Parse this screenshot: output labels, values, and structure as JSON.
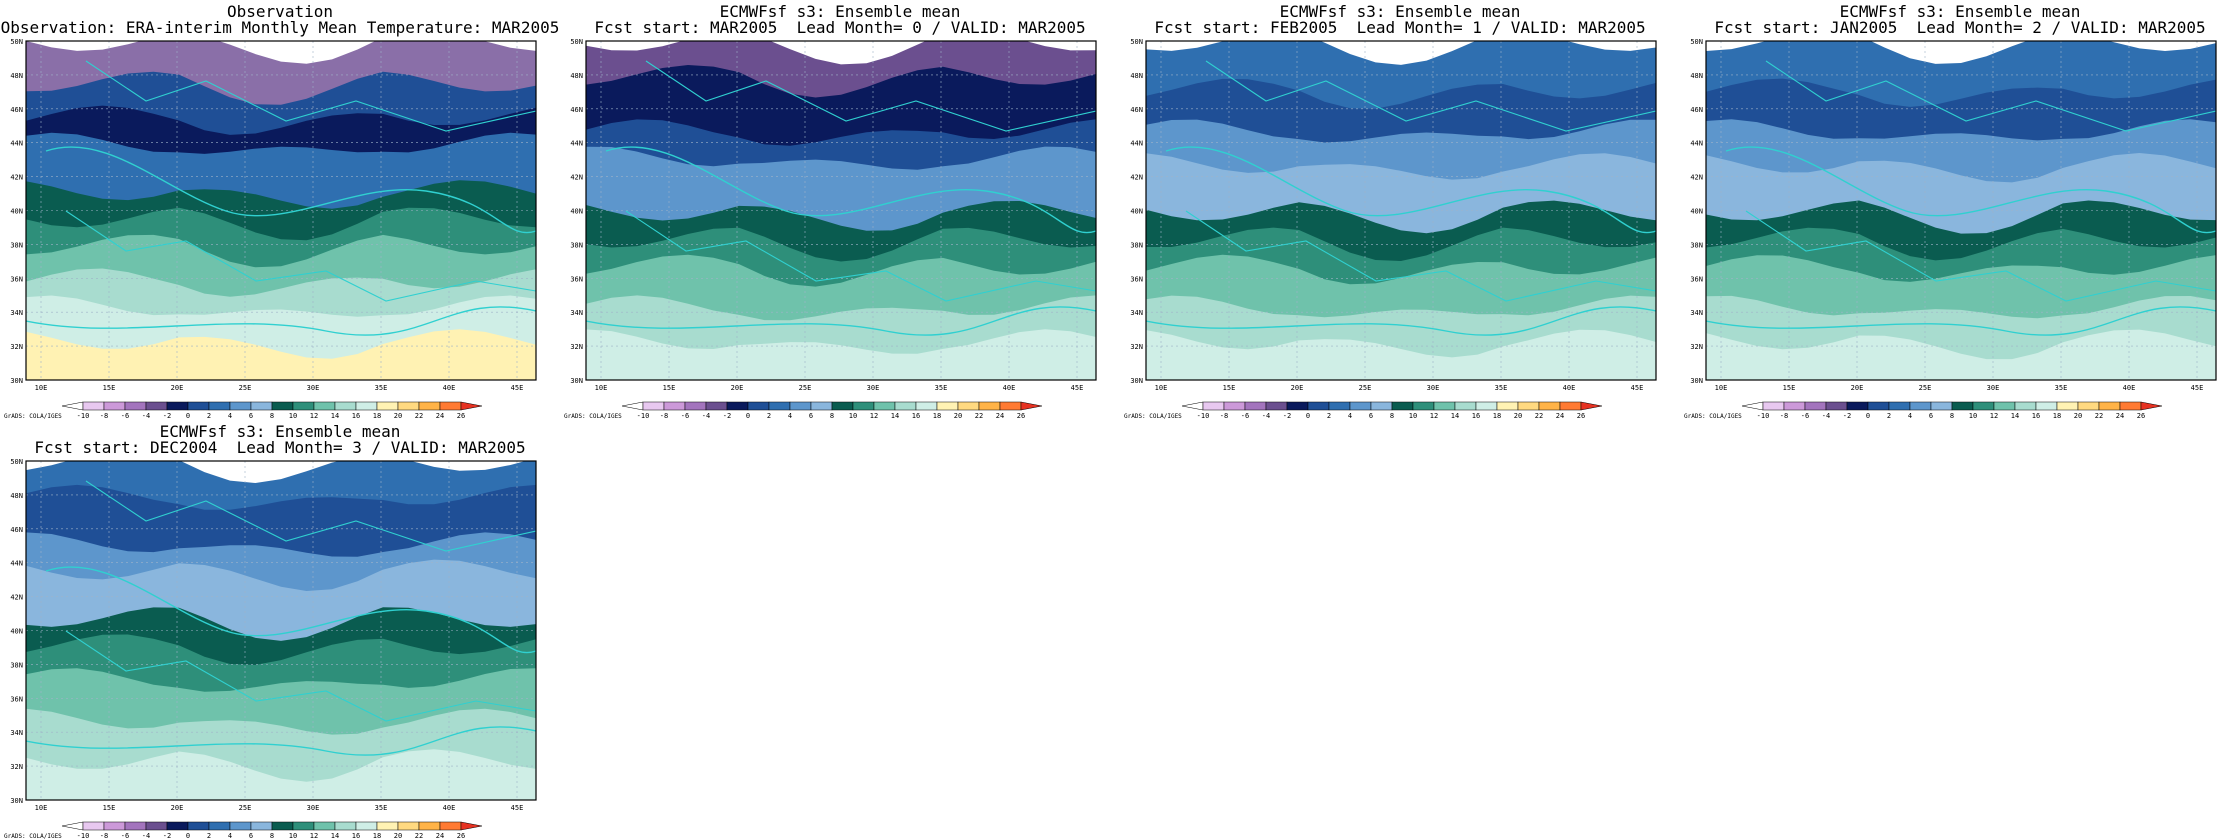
{
  "colorbar": {
    "credit": "GrADS: COLA/IGES",
    "levels": [
      "-10",
      "-8",
      "-6",
      "-4",
      "-2",
      "0",
      "2",
      "4",
      "6",
      "8",
      "10",
      "12",
      "14",
      "16",
      "18",
      "20",
      "22",
      "24",
      "26"
    ],
    "colors": [
      "#ffffff",
      "#e8c8f0",
      "#cc99d9",
      "#a374bd",
      "#6b4f8f",
      "#0a1a5c",
      "#1f4f96",
      "#2f6fb0",
      "#5d96cc",
      "#8ab6dd",
      "#0a5c50",
      "#2e8f7a",
      "#6fc2ab",
      "#a8dccf",
      "#cfeee6",
      "#fff2b3",
      "#ffd980",
      "#ffb347",
      "#ff7a33",
      "#e63322"
    ]
  },
  "axes": {
    "lat_labels": [
      "30N",
      "32N",
      "34N",
      "36N",
      "38N",
      "40N",
      "42N",
      "44N",
      "46N",
      "48N",
      "50N"
    ],
    "lon_labels": [
      "10E",
      "15E",
      "20E",
      "25E",
      "30E",
      "35E",
      "40E",
      "45E"
    ]
  },
  "panels": [
    {
      "title1": "Observation",
      "title2": "Observation: ERA-interim Monthly Mean Temperature: MAR2005"
    },
    {
      "title1": "ECMWFsf s3: Ensemble mean",
      "title2": "Fcst start: MAR2005  Lead Month= 0 / VALID: MAR2005"
    },
    {
      "title1": "ECMWFsf s3: Ensemble mean",
      "title2": "Fcst start: FEB2005  Lead Month= 1 / VALID: MAR2005"
    },
    {
      "title1": "ECMWFsf s3: Ensemble mean",
      "title2": "Fcst start: JAN2005  Lead Month= 2 / VALID: MAR2005"
    },
    {
      "title1": "ECMWFsf s3: Ensemble mean",
      "title2": "Fcst start: DEC2004  Lead Month= 3 / VALID: MAR2005"
    }
  ]
}
